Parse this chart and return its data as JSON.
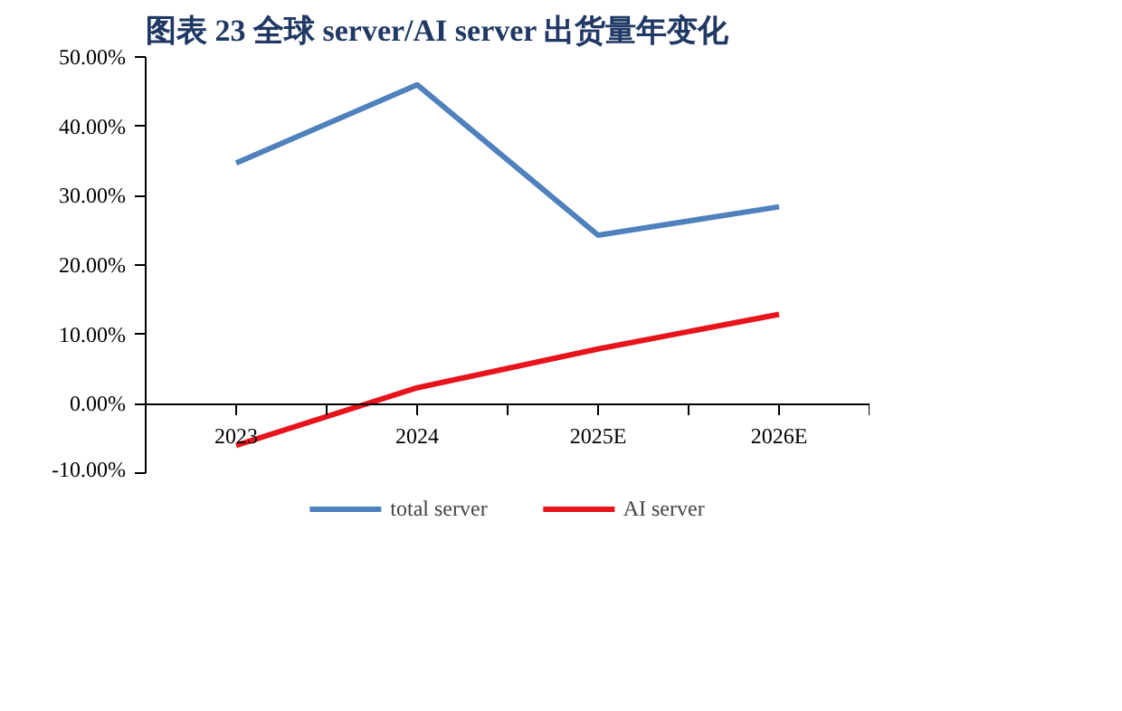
{
  "chart_data": {
    "type": "line",
    "title": "图表 23    全球 server/AI server 出货量年变化",
    "categories": [
      "2023",
      "2024",
      "2025E",
      "2026E"
    ],
    "series": [
      {
        "name": "total server",
        "color": "#4f81bd",
        "values": [
          34.7,
          46.0,
          24.3,
          28.4
        ]
      },
      {
        "name": "AI server",
        "color": "#e8141c",
        "values": [
          -6.0,
          2.3,
          7.9,
          12.9
        ]
      }
    ],
    "ylim": [
      -10,
      50
    ],
    "yticks": [
      {
        "value": -10,
        "label": "-10.00%"
      },
      {
        "value": 0,
        "label": "0.00%"
      },
      {
        "value": 10,
        "label": "10.00%"
      },
      {
        "value": 20,
        "label": "20.00%"
      },
      {
        "value": 30,
        "label": "30.00%"
      },
      {
        "value": 40,
        "label": "40.00%"
      },
      {
        "value": 50,
        "label": "50.00%"
      }
    ],
    "grid": false,
    "legend": "bottom",
    "marker": "none",
    "line_style": "solid"
  }
}
